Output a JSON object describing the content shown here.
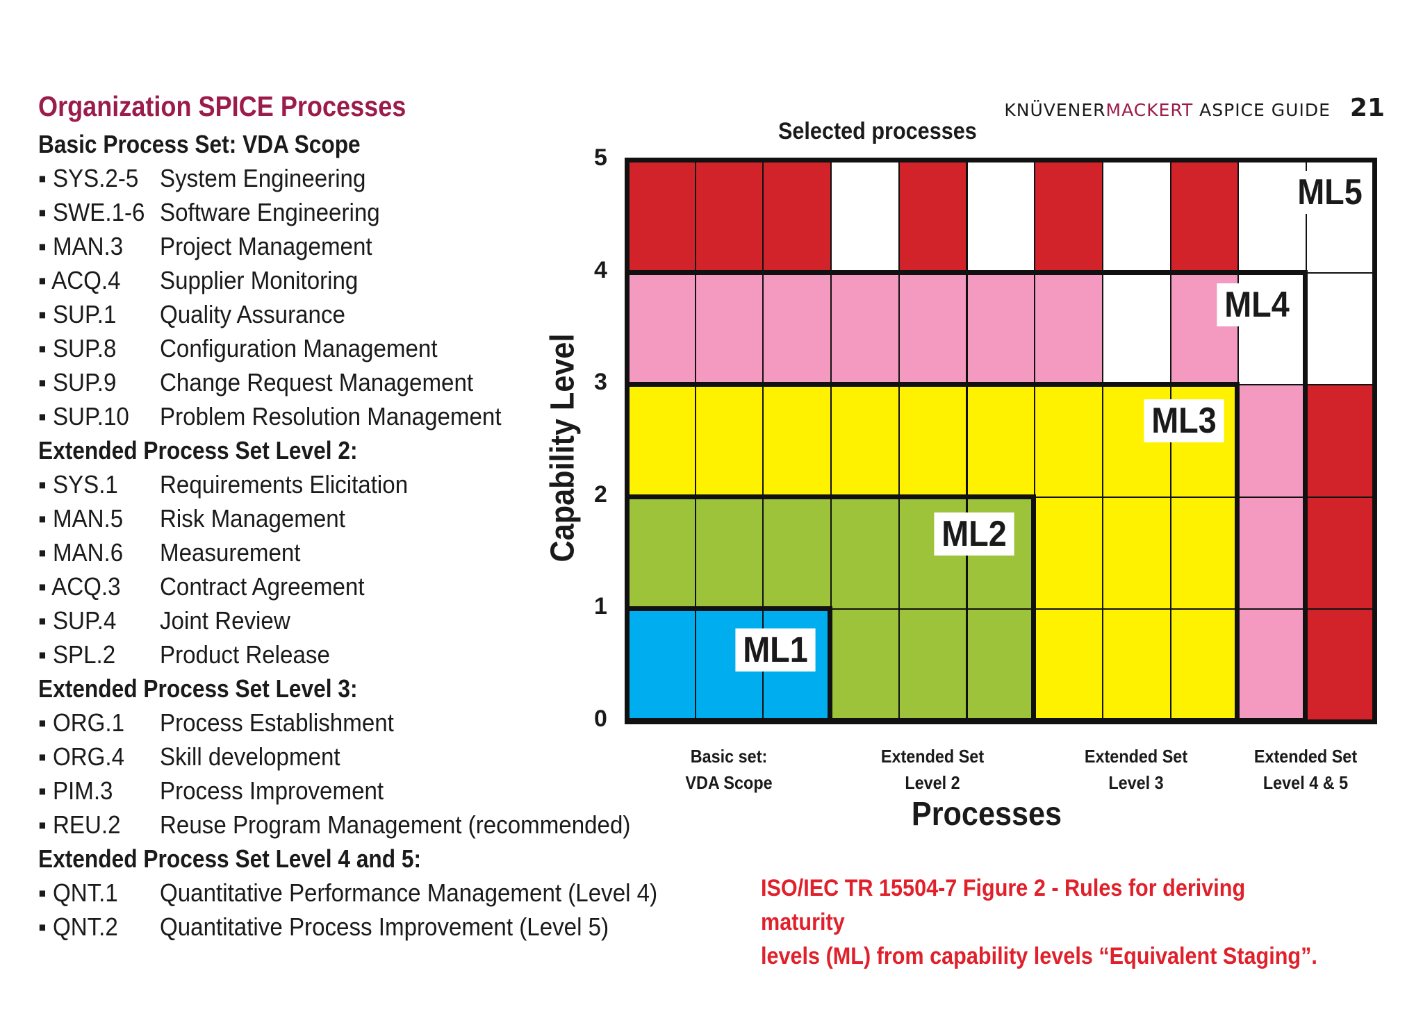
{
  "header": {
    "brand_dark": "KNÜVENER",
    "brand_accent": "MACKERT",
    "brand_suffix": " ASPICE GUIDE",
    "page_number": "21"
  },
  "left": {
    "title": "Organization SPICE Processes",
    "sections": [
      {
        "title": "Basic Process Set: VDA Scope",
        "items": [
          {
            "code": "SYS.2-5",
            "name": "System Engineering"
          },
          {
            "code": "SWE.1-6",
            "name": "Software Engineering"
          },
          {
            "code": "MAN.3",
            "name": "Project Management"
          },
          {
            "code": "ACQ.4",
            "name": "Supplier Monitoring"
          },
          {
            "code": "SUP.1",
            "name": "Quality Assurance"
          },
          {
            "code": "SUP.8",
            "name": "Configuration Management"
          },
          {
            "code": "SUP.9",
            "name": "Change Request Management"
          },
          {
            "code": "SUP.10",
            "name": "Problem Resolution Management"
          }
        ]
      },
      {
        "title": "Extended Process Set Level 2:",
        "items": [
          {
            "code": "SYS.1",
            "name": "Requirements Elicitation"
          },
          {
            "code": "MAN.5",
            "name": "Risk Management"
          },
          {
            "code": "MAN.6",
            "name": "Measurement"
          },
          {
            "code": "ACQ.3",
            "name": "Contract Agreement"
          },
          {
            "code": "SUP.4",
            "name": "Joint Review"
          },
          {
            "code": "SPL.2",
            "name": "Product Release"
          }
        ]
      },
      {
        "title": "Extended Process Set Level 3:",
        "items": [
          {
            "code": "ORG.1",
            "name": "Process Establishment"
          },
          {
            "code": "ORG.4",
            "name": "Skill development"
          },
          {
            "code": "PIM.3",
            "name": "Process Improvement"
          },
          {
            "code": "REU.2",
            "name": "Reuse Program Management (recommended)"
          }
        ]
      },
      {
        "title": "Extended Process Set Level 4 and 5:",
        "items": [
          {
            "code": "QNT.1",
            "name": "Quantitative Performance Management (Level 4)"
          },
          {
            "code": "QNT.2",
            "name": "Quantitative Process Improvement (Level 5)"
          }
        ]
      }
    ]
  },
  "diagram": {
    "title": "Selected processes",
    "y_axis_label": "Capability Level",
    "x_axis_label": "Processes",
    "y_ticks": [
      "0",
      "1",
      "2",
      "3",
      "4",
      "5"
    ],
    "x_groups": [
      {
        "line1": "Basic set:",
        "line2": "VDA Scope"
      },
      {
        "line1": "Extended Set",
        "line2": "Level 2"
      },
      {
        "line1": "Extended Set",
        "line2": "Level 3"
      },
      {
        "line1": "Extended Set",
        "line2": "Level 4 & 5"
      }
    ],
    "colors": {
      "blue": "#00aeef",
      "green": "#9dc33b",
      "yellow": "#fff200",
      "pink": "#f49ac1",
      "red": "#d2232a",
      "white": "#ffffff"
    },
    "rows_top_to_bottom": [
      [
        "red",
        "red",
        "red",
        "white",
        "red",
        "white",
        "red",
        "white",
        "red",
        "white",
        "white"
      ],
      [
        "pink",
        "pink",
        "pink",
        "pink",
        "pink",
        "pink",
        "pink",
        "white",
        "pink",
        "white",
        "white"
      ],
      [
        "yellow",
        "yellow",
        "yellow",
        "yellow",
        "yellow",
        "yellow",
        "yellow",
        "yellow",
        "yellow",
        "pink",
        "red"
      ],
      [
        "green",
        "green",
        "green",
        "green",
        "green",
        "green",
        "yellow",
        "yellow",
        "yellow",
        "pink",
        "red"
      ],
      [
        "blue",
        "blue",
        "blue",
        "green",
        "green",
        "green",
        "yellow",
        "yellow",
        "yellow",
        "pink",
        "red"
      ]
    ],
    "ml_labels": [
      "ML1",
      "ML2",
      "ML3",
      "ML4",
      "ML5"
    ]
  },
  "caption": {
    "line1": "ISO/IEC TR 15504-7 Figure 2 - Rules for deriving maturity",
    "line2": "levels (ML) from capability levels “Equivalent Staging”."
  }
}
